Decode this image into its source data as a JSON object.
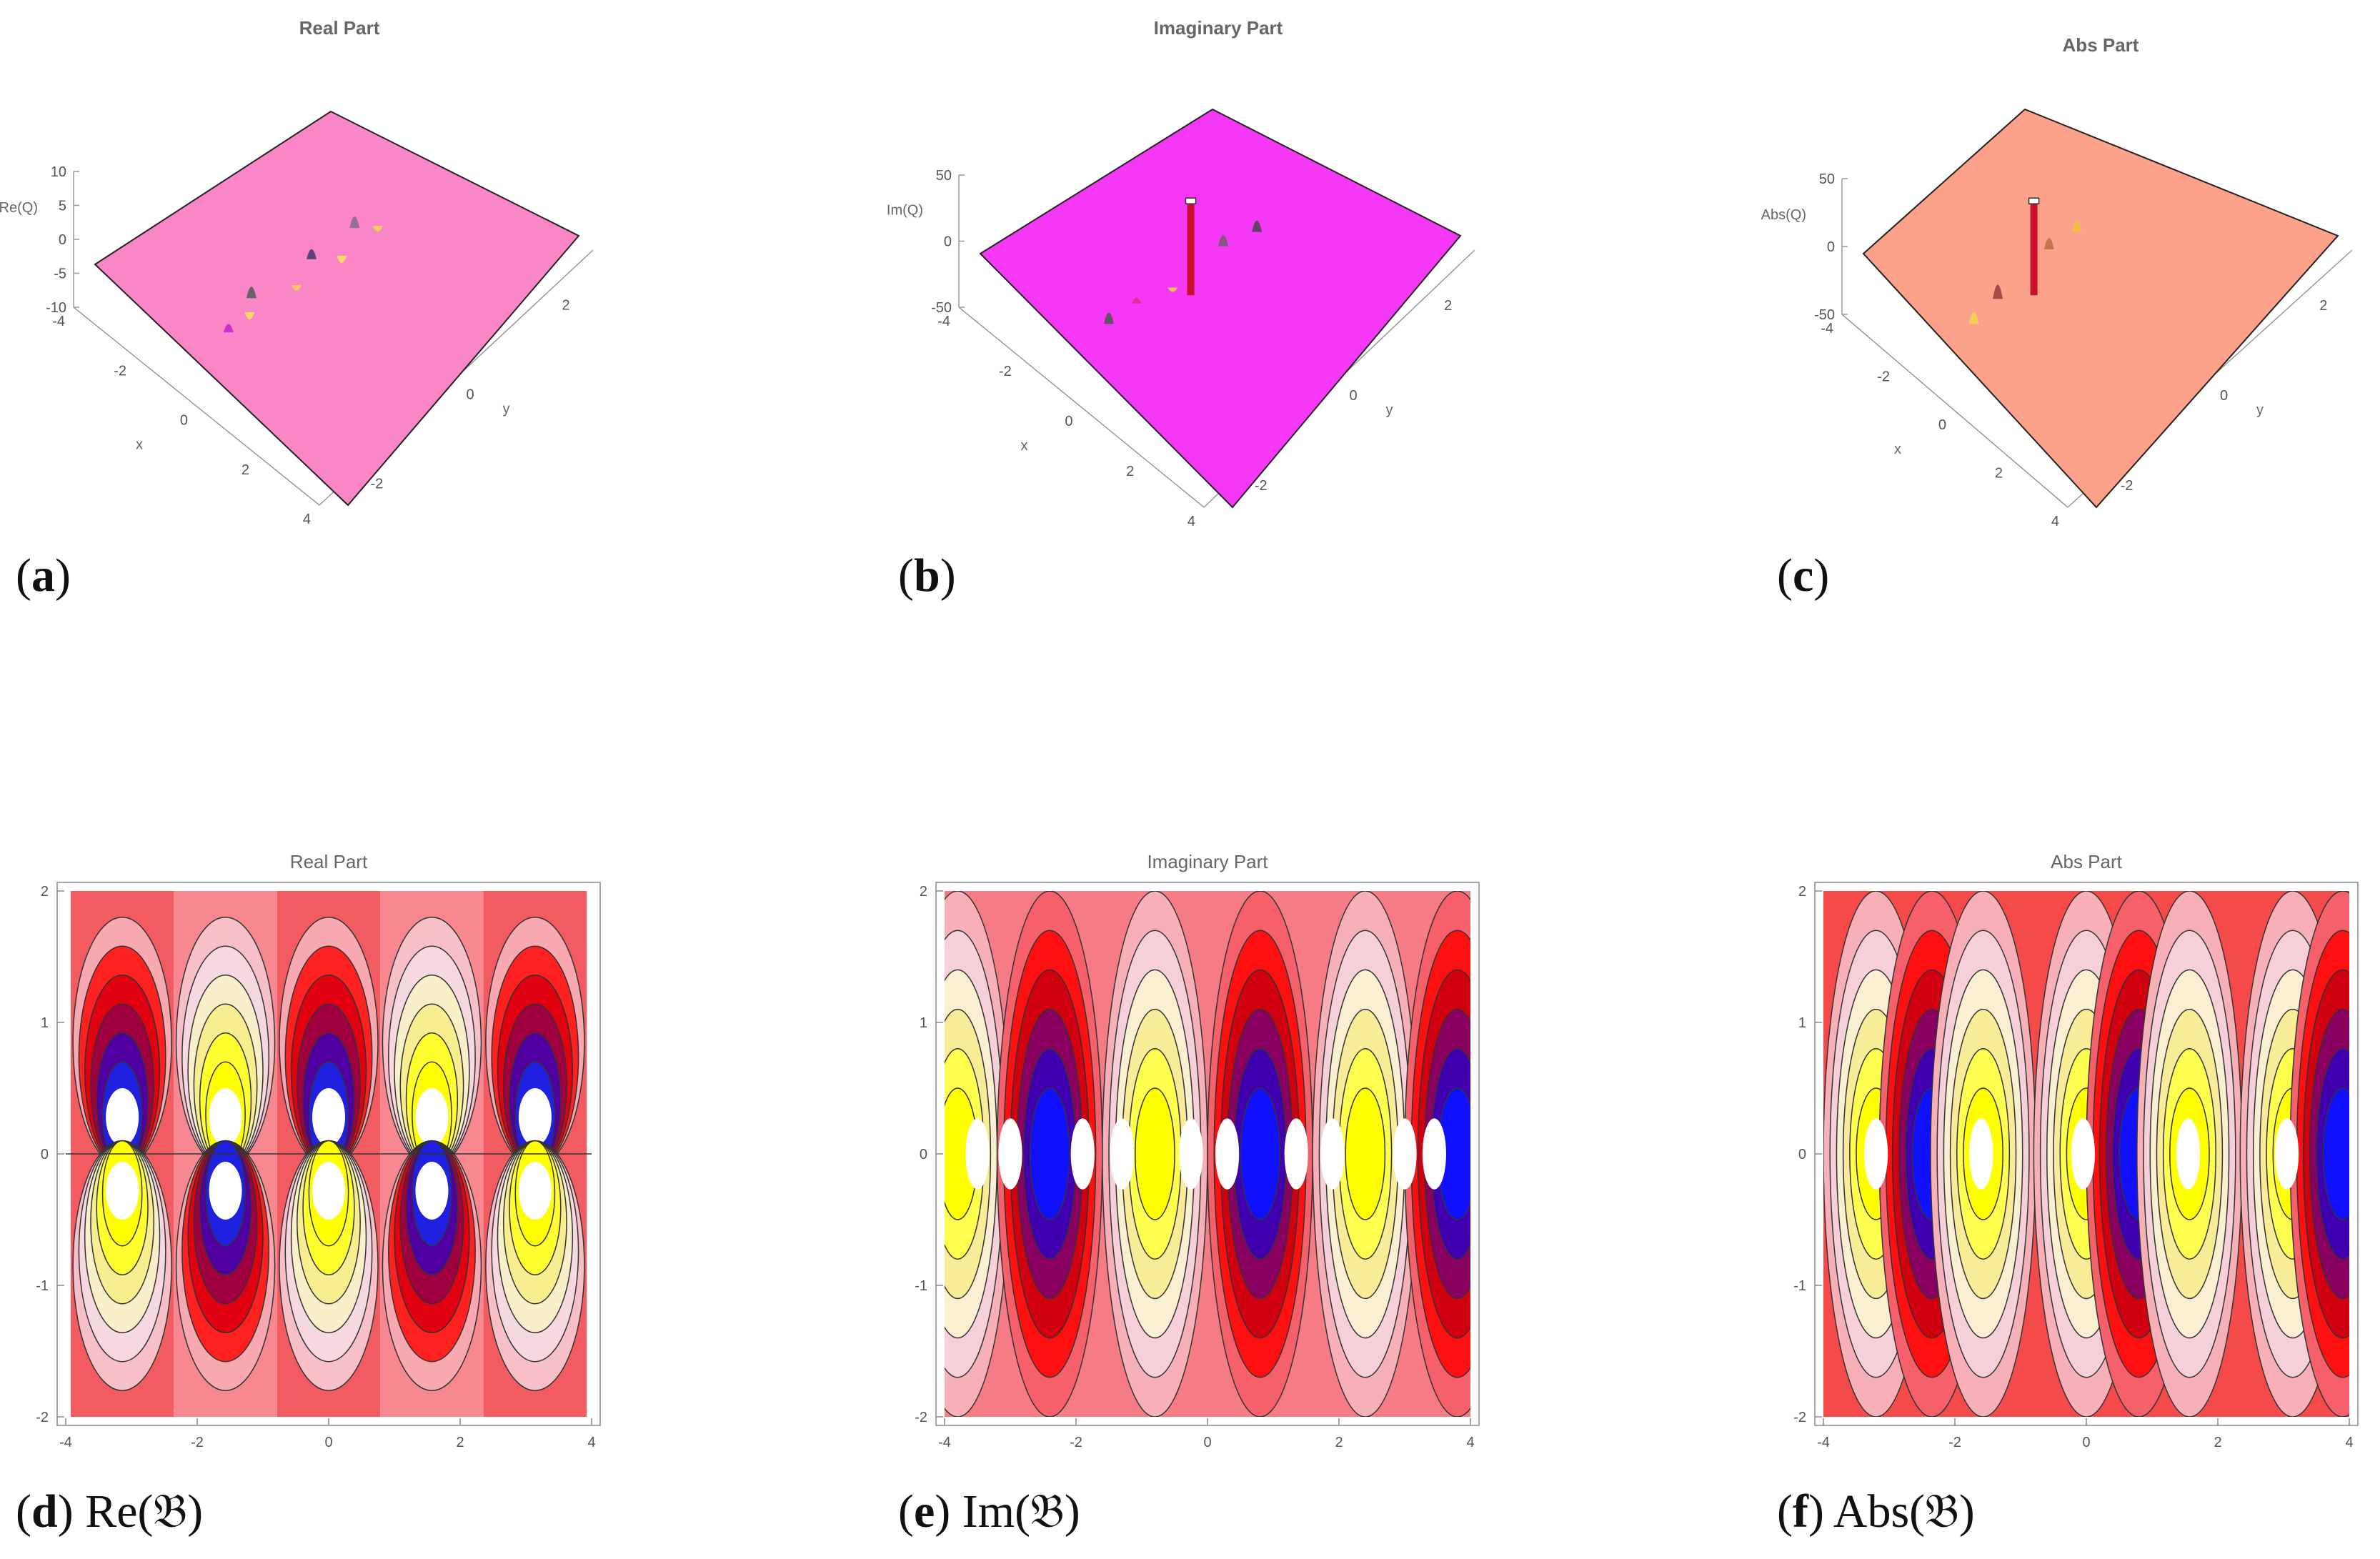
{
  "chart_data": [
    {
      "id": "a",
      "type": "surface3d",
      "title": "Real Part",
      "zlabel": "Re(Q)",
      "xlabel": "x",
      "ylabel": "y",
      "zticks": [
        "10",
        "5",
        "0",
        "-5",
        "-10"
      ],
      "xticks": [
        "-4",
        "-2",
        "0",
        "2",
        "4"
      ],
      "yticks": [
        "-2",
        "0",
        "2"
      ],
      "xlim": [
        -4,
        4
      ],
      "ylim": [
        -2,
        2
      ],
      "zlim": [
        -10,
        10
      ],
      "surface_color": "#f987c8",
      "caption_letter": "a",
      "caption_text": ""
    },
    {
      "id": "b",
      "type": "surface3d",
      "title": "Imaginary Part",
      "zlabel": "Im(Q)",
      "xlabel": "x",
      "ylabel": "y",
      "zticks": [
        "50",
        "0",
        "-50"
      ],
      "xticks": [
        "-4",
        "-2",
        "0",
        "2",
        "4"
      ],
      "yticks": [
        "-2",
        "0",
        "2"
      ],
      "xlim": [
        -4,
        4
      ],
      "ylim": [
        -2,
        2
      ],
      "zlim": [
        -50,
        50
      ],
      "surface_color": "#f538f5",
      "caption_letter": "b",
      "caption_text": ""
    },
    {
      "id": "c",
      "type": "surface3d",
      "title": "Abs Part",
      "zlabel": "Abs(Q)",
      "xlabel": "x",
      "ylabel": "y",
      "zticks": [
        "50",
        "0",
        "-50"
      ],
      "xticks": [
        "-4",
        "-2",
        "0",
        "2",
        "4"
      ],
      "yticks": [
        "-2",
        "0",
        "2"
      ],
      "xlim": [
        -4,
        4
      ],
      "ylim": [
        -2,
        2
      ],
      "zlim": [
        -50,
        50
      ],
      "surface_color": "#fda28a",
      "caption_letter": "c",
      "caption_text": ""
    },
    {
      "id": "d",
      "type": "contour",
      "title": "Real Part",
      "xticks": [
        "-4",
        "-2",
        "0",
        "2",
        "4"
      ],
      "yticks": [
        "2",
        "1",
        "0",
        "-1",
        "-2"
      ],
      "xlim": [
        -4,
        4
      ],
      "ylim": [
        -2,
        2
      ],
      "caption_letter": "d",
      "caption_text": " Re(𝔅)"
    },
    {
      "id": "e",
      "type": "contour",
      "title": "Imaginary Part",
      "xticks": [
        "-4",
        "-2",
        "0",
        "2",
        "4"
      ],
      "yticks": [
        "2",
        "1",
        "0",
        "-1",
        "-2"
      ],
      "xlim": [
        -4,
        4
      ],
      "ylim": [
        -2,
        2
      ],
      "caption_letter": "e",
      "caption_text": " Im(𝔅)"
    },
    {
      "id": "f",
      "type": "contour",
      "title": "Abs Part",
      "xticks": [
        "-4",
        "-2",
        "0",
        "2",
        "4"
      ],
      "yticks": [
        "2",
        "1",
        "0",
        "-1",
        "-2"
      ],
      "xlim": [
        -4,
        4
      ],
      "ylim": [
        -2,
        2
      ],
      "caption_letter": "f",
      "caption_text": " Abs(𝔅)"
    }
  ]
}
